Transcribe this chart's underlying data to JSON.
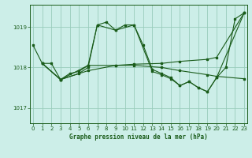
{
  "title": "Graphe pression niveau de la mer (hPa)",
  "bg_color": "#cceee8",
  "grid_color": "#99ccbb",
  "line_color": "#1a5c1a",
  "xlim": [
    -0.3,
    23.3
  ],
  "ylim": [
    1016.62,
    1019.55
  ],
  "yticks": [
    1017,
    1018,
    1019
  ],
  "xticks": [
    0,
    1,
    2,
    3,
    4,
    5,
    6,
    7,
    8,
    9,
    10,
    11,
    12,
    13,
    14,
    15,
    16,
    17,
    18,
    19,
    20,
    21,
    22,
    23
  ],
  "series": [
    {
      "x": [
        0,
        1,
        2,
        3,
        4,
        5,
        6,
        7,
        8,
        9,
        10,
        11,
        12,
        13,
        14,
        15,
        16,
        17,
        18,
        19,
        20,
        21,
        22,
        23
      ],
      "y": [
        1018.55,
        1018.1,
        1018.1,
        1017.7,
        1017.85,
        1017.9,
        1018.05,
        1019.05,
        1019.12,
        1018.92,
        1019.05,
        1019.05,
        1018.55,
        1017.95,
        1017.85,
        1017.75,
        1017.55,
        1017.65,
        1017.5,
        1017.4,
        1017.75,
        1018.0,
        1019.2,
        1019.35
      ]
    },
    {
      "x": [
        1,
        3,
        6,
        9,
        11,
        14,
        16,
        19,
        20,
        23
      ],
      "y": [
        1018.1,
        1017.7,
        1017.92,
        1018.05,
        1018.08,
        1018.1,
        1018.15,
        1018.2,
        1018.25,
        1019.35
      ]
    },
    {
      "x": [
        1,
        3,
        6,
        9,
        11,
        14,
        16,
        19,
        20,
        23
      ],
      "y": [
        1018.1,
        1017.7,
        1018.05,
        1018.05,
        1018.05,
        1018.0,
        1017.92,
        1017.82,
        1017.78,
        1017.72
      ]
    },
    {
      "x": [
        1,
        3,
        5,
        6,
        7,
        9,
        11,
        13,
        14,
        15,
        16,
        17,
        18,
        19,
        20,
        23
      ],
      "y": [
        1018.1,
        1017.7,
        1017.85,
        1018.0,
        1019.05,
        1018.92,
        1019.05,
        1017.9,
        1017.82,
        1017.72,
        1017.55,
        1017.65,
        1017.5,
        1017.4,
        1017.75,
        1019.35
      ]
    }
  ]
}
